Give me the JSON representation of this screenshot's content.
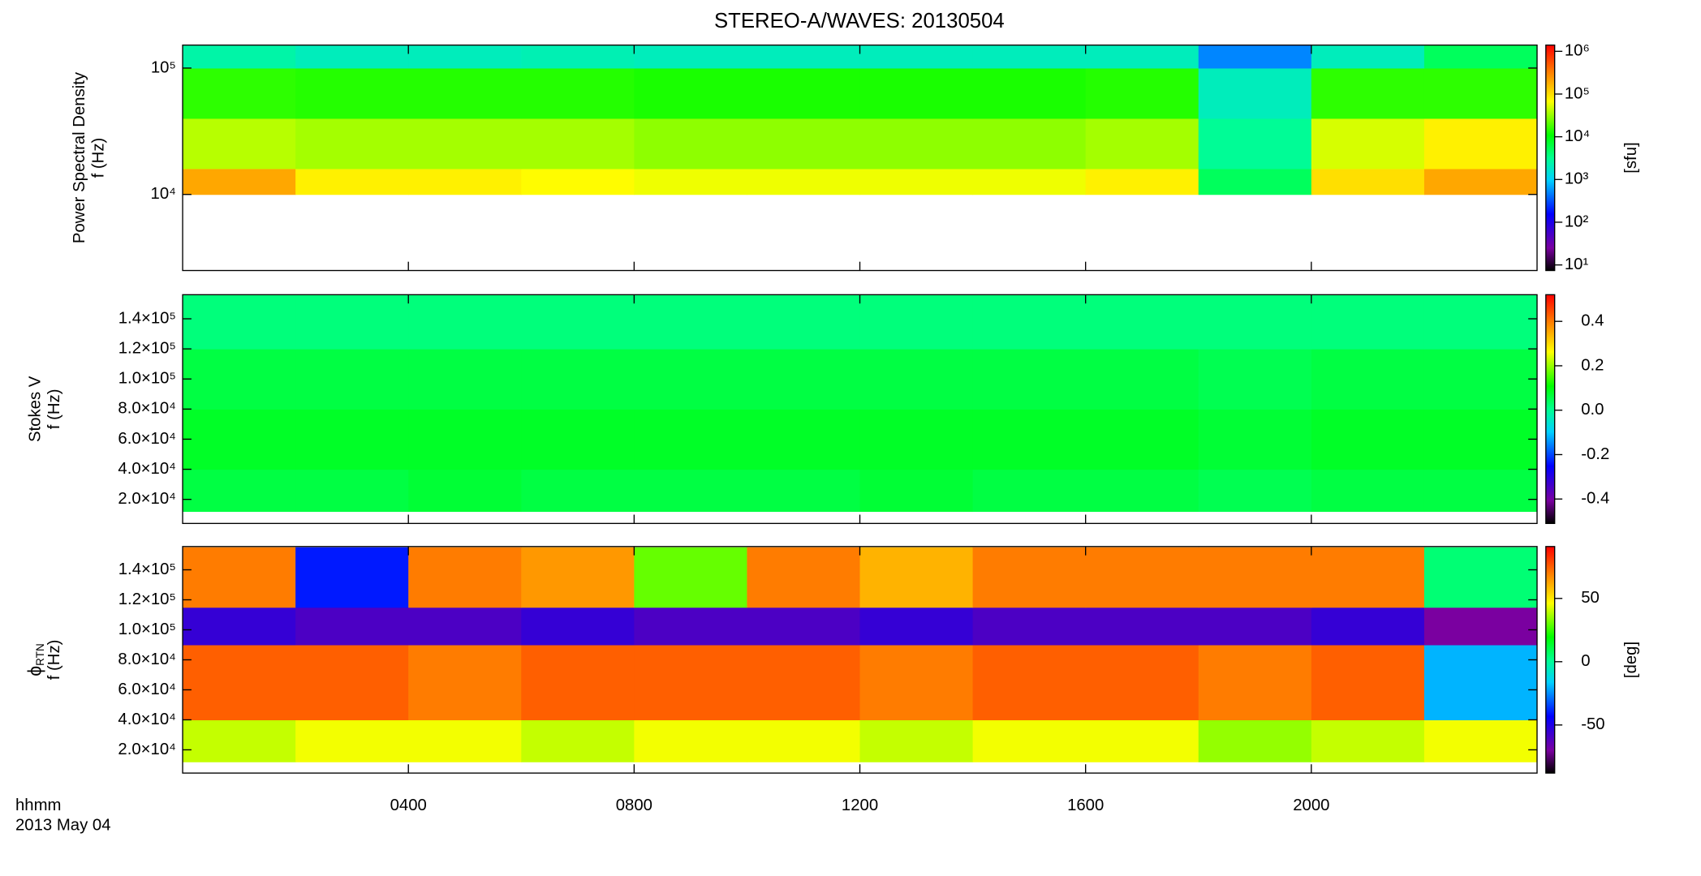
{
  "title": "STEREO-A/WAVES: 20130504",
  "x_axis_label": "hhmm",
  "date_label": "2013 May 04",
  "chart_data": [
    {
      "type": "heatmap",
      "ylabel": "Power Spectral Density",
      "ylabel_2": "f (Hz)",
      "colorbar_label": "[sfu]",
      "colormap": "rainbow",
      "ylog": true,
      "clog": true,
      "xlim": [
        0,
        24
      ],
      "ylim": [
        2500,
        152000
      ],
      "clim": [
        7.4,
        1400000
      ],
      "yticks": [
        {
          "value": 10000,
          "label": "10⁴"
        },
        {
          "value": 100000,
          "label": "10⁵"
        }
      ],
      "cticks": [
        {
          "value": 10,
          "label": "10¹"
        },
        {
          "value": 100,
          "label": "10²"
        },
        {
          "value": 1000,
          "label": "10³"
        },
        {
          "value": 10000,
          "label": "10⁴"
        },
        {
          "value": 100000,
          "label": "10⁵"
        },
        {
          "value": 1000000,
          "label": "10⁶"
        }
      ],
      "x_edges": [
        0,
        2,
        4,
        6,
        8,
        10,
        12,
        14,
        16,
        18,
        20,
        22,
        24
      ],
      "y_edges": [
        10000,
        16000,
        40000,
        100000,
        152000
      ],
      "z": [
        [
          200000,
          80000,
          80000,
          70000,
          60000,
          60000,
          60000,
          60000,
          80000,
          5000,
          100000,
          200000
        ],
        [
          40000,
          35000,
          35000,
          35000,
          30000,
          30000,
          30000,
          30000,
          35000,
          3000,
          50000,
          80000
        ],
        [
          15000,
          14000,
          14000,
          14000,
          13000,
          13000,
          13000,
          13000,
          14000,
          2000,
          15000,
          15000
        ],
        [
          2500,
          2000,
          2000,
          2200,
          2000,
          2000,
          2000,
          2000,
          2000,
          500,
          2000,
          5000
        ]
      ]
    },
    {
      "type": "heatmap",
      "ylabel": "Stokes V",
      "ylabel_2": "f (Hz)",
      "colormap": "rainbow",
      "ylog": false,
      "clog": false,
      "xlim": [
        0,
        24
      ],
      "ylim": [
        4000,
        156000
      ],
      "clim": [
        -0.51,
        0.52
      ],
      "yticks": [
        {
          "value": 20000,
          "label": "2.0×10⁴"
        },
        {
          "value": 40000,
          "label": "4.0×10⁴"
        },
        {
          "value": 60000,
          "label": "6.0×10⁴"
        },
        {
          "value": 80000,
          "label": "8.0×10⁴"
        },
        {
          "value": 100000,
          "label": "1.0×10⁵"
        },
        {
          "value": 120000,
          "label": "1.2×10⁵"
        },
        {
          "value": 140000,
          "label": "1.4×10⁵"
        }
      ],
      "cticks": [
        -0.4,
        -0.2,
        {
          "value": 0,
          "label": "0.0"
        },
        0.2,
        0.4
      ],
      "x_edges": [
        0,
        2,
        4,
        6,
        8,
        10,
        12,
        14,
        16,
        18,
        20,
        22,
        24
      ],
      "y_edges": [
        12000,
        40000,
        80000,
        120000,
        156000
      ],
      "z": [
        [
          0.06,
          0.06,
          0.07,
          0.06,
          0.06,
          0.06,
          0.07,
          0.06,
          0.06,
          0.05,
          0.06,
          0.06
        ],
        [
          0.08,
          0.08,
          0.08,
          0.08,
          0.08,
          0.08,
          0.08,
          0.08,
          0.08,
          0.07,
          0.08,
          0.08
        ],
        [
          0.06,
          0.06,
          0.06,
          0.06,
          0.06,
          0.06,
          0.06,
          0.06,
          0.06,
          0.05,
          0.06,
          0.06
        ],
        [
          0.02,
          0.02,
          0.02,
          0.02,
          0.02,
          0.02,
          0.02,
          0.02,
          0.02,
          0.02,
          0.02,
          0.02
        ]
      ]
    },
    {
      "type": "heatmap",
      "ylabel": "ϕ",
      "ylabel_sub": "RTN",
      "ylabel_2": "f (Hz)",
      "colorbar_label": "[deg]",
      "colormap": "rainbow",
      "ylog": false,
      "clog": false,
      "xlim": [
        0,
        24
      ],
      "ylim": [
        4500,
        155500
      ],
      "clim": [
        -88,
        91
      ],
      "yticks": [
        {
          "value": 20000,
          "label": "2.0×10⁴"
        },
        {
          "value": 40000,
          "label": "4.0×10⁴"
        },
        {
          "value": 60000,
          "label": "6.0×10⁴"
        },
        {
          "value": 80000,
          "label": "8.0×10⁴"
        },
        {
          "value": 100000,
          "label": "1.0×10⁵"
        },
        {
          "value": 120000,
          "label": "1.2×10⁵"
        },
        {
          "value": 140000,
          "label": "1.4×10⁵"
        }
      ],
      "cticks": [
        -50,
        0,
        50
      ],
      "xticks": [
        {
          "value": 4,
          "label": "0400"
        },
        {
          "value": 8,
          "label": "0800"
        },
        {
          "value": 12,
          "label": "1200"
        },
        {
          "value": 16,
          "label": "1600"
        },
        {
          "value": 20,
          "label": "2000"
        }
      ],
      "x_edges": [
        0,
        2,
        4,
        6,
        8,
        10,
        12,
        14,
        16,
        18,
        20,
        22,
        24
      ],
      "y_edges": [
        12000,
        40000,
        90000,
        115000,
        155000
      ],
      "z": [
        [
          40,
          45,
          45,
          40,
          45,
          45,
          40,
          45,
          45,
          35,
          40,
          45
        ],
        [
          75,
          75,
          70,
          75,
          75,
          75,
          70,
          75,
          75,
          70,
          75,
          -20
        ],
        [
          -55,
          -60,
          -60,
          -55,
          -60,
          -60,
          -55,
          -60,
          -60,
          -60,
          -55,
          -70
        ],
        [
          70,
          -40,
          70,
          65,
          30,
          70,
          60,
          70,
          70,
          70,
          70,
          5
        ]
      ]
    }
  ]
}
